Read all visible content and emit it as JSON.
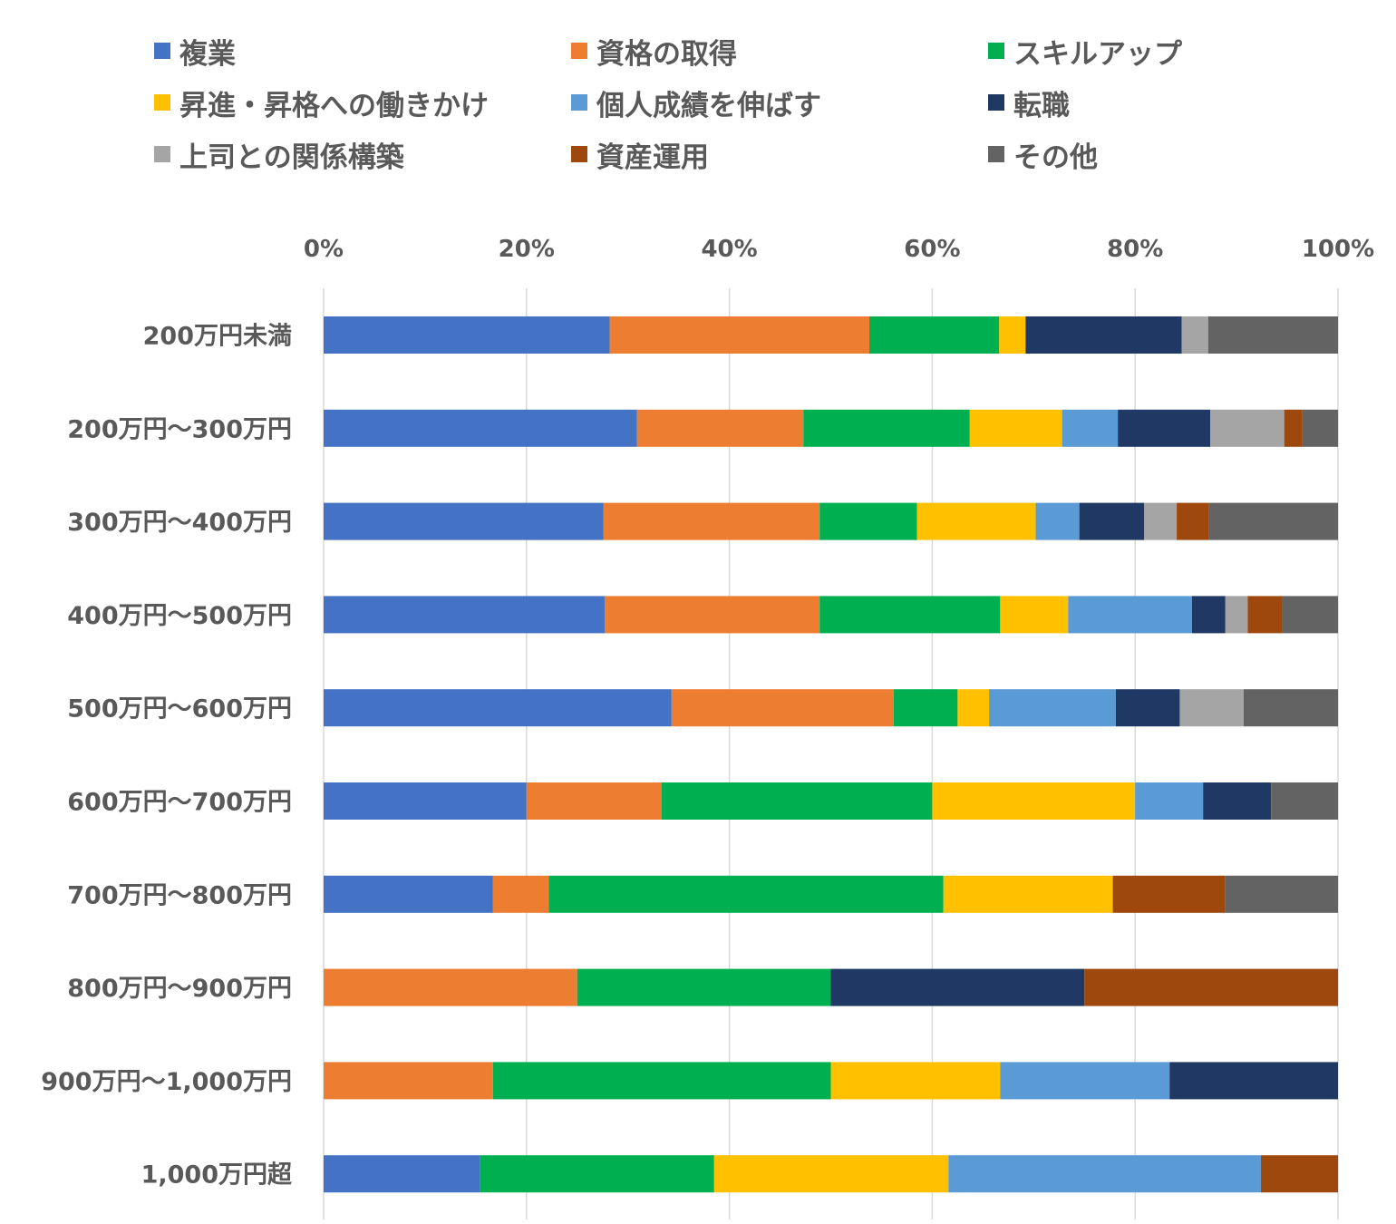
{
  "chart_data": {
    "type": "bar",
    "orientation": "horizontal",
    "stacked": "percent",
    "title": "",
    "xlabel": "",
    "ylabel": "",
    "xlim": [
      0,
      100
    ],
    "x_ticks": [
      "0%",
      "20%",
      "40%",
      "60%",
      "80%",
      "100%"
    ],
    "x_axis_position": "top",
    "grid": true,
    "legend_position": "top",
    "categories": [
      "200万円未満",
      "200万円～300万円",
      "300万円～400万円",
      "400万円～500万円",
      "500万円～600万円",
      "600万円～700万円",
      "700万円～800万円",
      "800万円～900万円",
      "900万円～1,000万円",
      "1,000万円超"
    ],
    "series": [
      {
        "name": "複業",
        "color": "#4472C4",
        "values": [
          28.2,
          30.9,
          27.6,
          27.7,
          34.3,
          20.0,
          16.7,
          0,
          0,
          15.4
        ]
      },
      {
        "name": "資格の取得",
        "color": "#ED7D31",
        "values": [
          25.6,
          16.4,
          21.3,
          21.2,
          21.9,
          13.3,
          5.5,
          25.0,
          16.7,
          0
        ]
      },
      {
        "name": "スキルアップ",
        "color": "#00B050",
        "values": [
          12.8,
          16.4,
          9.6,
          17.8,
          6.3,
          26.7,
          38.9,
          25.0,
          33.3,
          23.1
        ]
      },
      {
        "name": "昇進・昇格への働きかけ",
        "color": "#FFC000",
        "values": [
          2.6,
          9.1,
          11.7,
          6.7,
          3.1,
          20.0,
          16.7,
          0,
          16.7,
          23.1
        ]
      },
      {
        "name": "個人成績を伸ばす",
        "color": "#5B9BD5",
        "values": [
          0,
          5.5,
          4.3,
          12.2,
          12.5,
          6.7,
          0,
          0,
          16.7,
          30.8
        ]
      },
      {
        "name": "転職",
        "color": "#203864",
        "values": [
          15.4,
          9.1,
          6.4,
          3.3,
          6.3,
          6.7,
          0,
          25.0,
          16.6,
          0
        ]
      },
      {
        "name": "上司との関係構築",
        "color": "#A5A5A5",
        "values": [
          2.6,
          7.3,
          3.2,
          2.2,
          6.3,
          0,
          0,
          0,
          0,
          0
        ]
      },
      {
        "name": "資産運用",
        "color": "#9E480E",
        "values": [
          0,
          1.8,
          3.2,
          3.4,
          0,
          0,
          11.1,
          25.0,
          0,
          7.6
        ]
      },
      {
        "name": "その他",
        "color": "#636363",
        "values": [
          12.8,
          3.5,
          12.7,
          5.5,
          9.3,
          6.6,
          11.1,
          0,
          0,
          0
        ]
      }
    ]
  }
}
